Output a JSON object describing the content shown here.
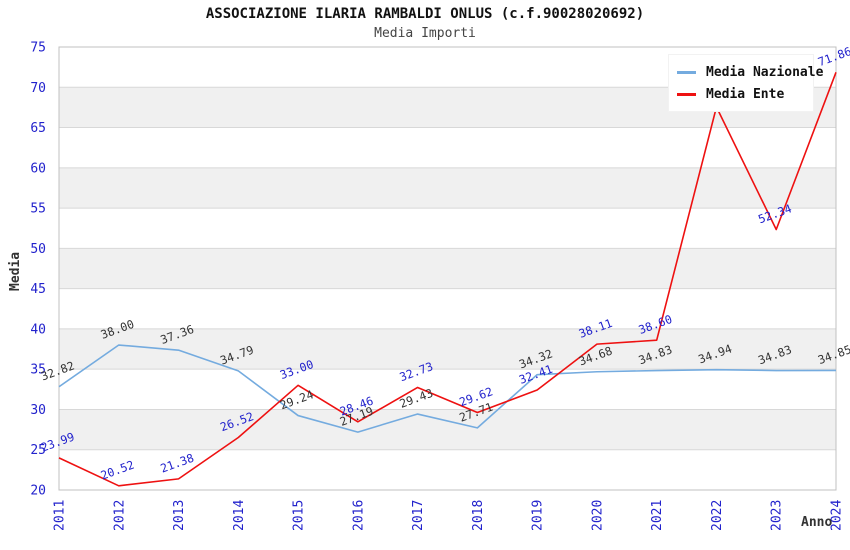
{
  "header": {
    "title": "ASSOCIAZIONE ILARIA RAMBALDI ONLUS (c.f.90028020692)",
    "subtitle": "Media Importi"
  },
  "legend": {
    "items": [
      {
        "label": "Media Nazionale"
      },
      {
        "label": "Media Ente"
      }
    ]
  },
  "colors": {
    "tick_label": "#2222cc",
    "band_gray": "#f0f0f0",
    "gridline": "#d8d8d8",
    "plot_border": "#c0c0c0",
    "nazionale_line": "#74abdf",
    "ente_line": "#ee1111",
    "nazionale_point_label": "#333333",
    "ente_point_label": "#2222cc"
  },
  "chart_data": {
    "type": "line",
    "title": "ASSOCIAZIONE ILARIA RAMBALDI ONLUS (c.f.90028020692)",
    "subtitle": "Media Importi",
    "xlabel": "Anno",
    "ylabel": "Media",
    "x": [
      2011,
      2012,
      2013,
      2014,
      2015,
      2016,
      2017,
      2018,
      2019,
      2020,
      2021,
      2022,
      2023,
      2024
    ],
    "ylim": [
      20,
      75
    ],
    "ytick_step": 5,
    "grid": true,
    "gray_bands": [
      [
        25,
        30
      ],
      [
        35,
        40
      ],
      [
        45,
        50
      ],
      [
        55,
        60
      ],
      [
        65,
        70
      ]
    ],
    "legend_position": "top-right",
    "series": [
      {
        "name": "Media Nazionale",
        "color": "#74abdf",
        "label_color": "#333333",
        "values": [
          32.82,
          38.0,
          37.36,
          34.79,
          29.24,
          27.19,
          29.43,
          27.71,
          34.32,
          34.68,
          34.83,
          34.94,
          34.83,
          34.85
        ],
        "labels": [
          "32.82",
          "38.00",
          "37.36",
          "34.79",
          "29.24",
          "27.19",
          "29.43",
          "27.71",
          "34.32",
          "34.68",
          "34.83",
          "34.94",
          "34.83",
          "34.85"
        ]
      },
      {
        "name": "Media Ente",
        "color": "#ee1111",
        "label_color": "#2222cc",
        "values": [
          23.99,
          20.52,
          21.38,
          26.52,
          33.0,
          28.46,
          32.73,
          29.62,
          32.41,
          38.11,
          38.6,
          67.55,
          52.34,
          71.86
        ],
        "labels": [
          "23.99",
          "20.52",
          "21.38",
          "26.52",
          "33.00",
          "28.46",
          "32.73",
          "29.62",
          "32.41",
          "38.11",
          "38.60",
          null,
          "52.34",
          "71.86"
        ]
      }
    ]
  }
}
